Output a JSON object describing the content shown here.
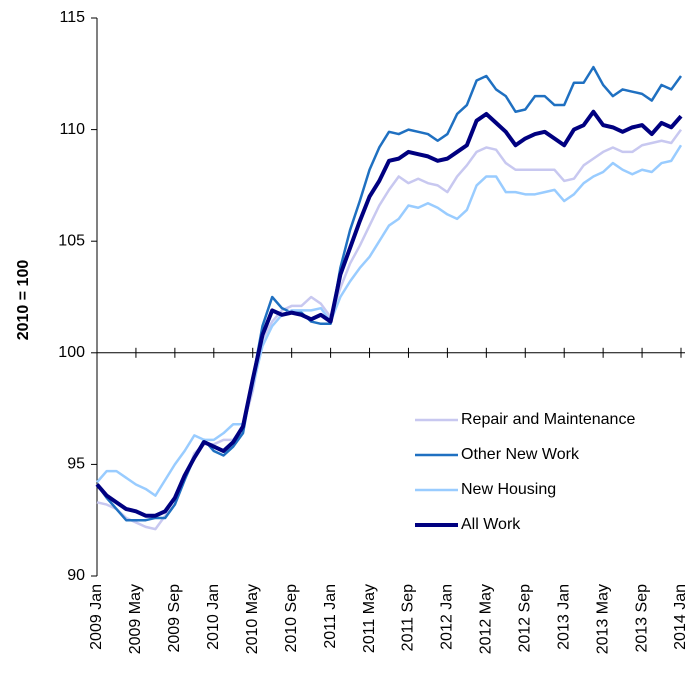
{
  "chart_data": {
    "type": "line",
    "y_label": "2010 = 100",
    "categories": [
      "2009 Jan",
      null,
      null,
      null,
      "2009 May",
      null,
      null,
      null,
      "2009 Sep",
      null,
      null,
      null,
      "2010 Jan",
      null,
      null,
      null,
      "2010 May",
      null,
      null,
      null,
      "2010 Sep",
      null,
      null,
      null,
      "2011 Jan",
      null,
      null,
      null,
      "2011 May",
      null,
      null,
      null,
      "2011 Sep",
      null,
      null,
      null,
      "2012 Jan",
      null,
      null,
      null,
      "2012 May",
      null,
      null,
      null,
      "2012 Sep",
      null,
      null,
      null,
      "2013 Jan",
      null,
      null,
      null,
      "2013 May",
      null,
      null,
      null,
      "2013 Sep",
      null,
      null,
      null,
      "2014 Jan"
    ],
    "series": [
      {
        "name": "Repair and Maintenance",
        "color": "#c8c8f0",
        "values": [
          93.3,
          93.2,
          93.0,
          92.6,
          92.4,
          92.2,
          92.1,
          92.7,
          93.2,
          94.3,
          95.5,
          95.9,
          95.9,
          96.1,
          96.1,
          96.7,
          98.3,
          100.6,
          101.4,
          101.9,
          102.1,
          102.1,
          102.5,
          102.2,
          101.6,
          102.9,
          104.0,
          104.8,
          105.7,
          106.6,
          107.3,
          107.9,
          107.6,
          107.8,
          107.6,
          107.5,
          107.2,
          107.9,
          108.4,
          109.0,
          109.2,
          109.1,
          108.5,
          108.2,
          108.2,
          108.2,
          108.2,
          108.2,
          107.7,
          107.8,
          108.4,
          108.7,
          109.0,
          109.2,
          109.0,
          109.0,
          109.3,
          109.4,
          109.5,
          109.4,
          110.0
        ]
      },
      {
        "name": "Other New Work",
        "color": "#1f70c1",
        "values": [
          94.1,
          93.5,
          93.0,
          92.5,
          92.5,
          92.5,
          92.6,
          92.6,
          93.2,
          94.3,
          95.3,
          96.1,
          95.6,
          95.4,
          95.8,
          96.4,
          98.8,
          101.2,
          102.5,
          102.0,
          101.8,
          101.8,
          101.4,
          101.3,
          101.3,
          103.8,
          105.5,
          106.8,
          108.2,
          109.2,
          109.9,
          109.8,
          110.0,
          109.9,
          109.8,
          109.5,
          109.8,
          110.7,
          111.1,
          112.2,
          112.4,
          111.8,
          111.5,
          110.8,
          110.9,
          111.5,
          111.5,
          111.1,
          111.1,
          112.1,
          112.1,
          112.8,
          112.0,
          111.5,
          111.8,
          111.7,
          111.6,
          111.3,
          112.0,
          111.8,
          112.4
        ]
      },
      {
        "name": "New Housing",
        "color": "#99ccff",
        "values": [
          94.2,
          94.7,
          94.7,
          94.4,
          94.1,
          93.9,
          93.6,
          94.3,
          95.0,
          95.6,
          96.3,
          96.1,
          96.1,
          96.4,
          96.8,
          96.8,
          98.5,
          100.3,
          101.2,
          101.7,
          101.9,
          101.9,
          101.9,
          102.0,
          101.4,
          102.5,
          103.2,
          103.8,
          104.3,
          105.0,
          105.7,
          106.0,
          106.6,
          106.5,
          106.7,
          106.5,
          106.2,
          106.0,
          106.4,
          107.5,
          107.9,
          107.9,
          107.2,
          107.2,
          107.1,
          107.1,
          107.2,
          107.3,
          106.8,
          107.1,
          107.6,
          107.9,
          108.1,
          108.5,
          108.2,
          108.0,
          108.2,
          108.1,
          108.5,
          108.6,
          109.3
        ]
      },
      {
        "name": "All Work",
        "color": "#000080",
        "values": [
          94.1,
          93.6,
          93.3,
          93.0,
          92.9,
          92.7,
          92.7,
          92.9,
          93.5,
          94.5,
          95.3,
          96.0,
          95.8,
          95.6,
          96.0,
          96.7,
          98.8,
          100.8,
          101.9,
          101.7,
          101.8,
          101.7,
          101.5,
          101.7,
          101.4,
          103.5,
          104.7,
          105.9,
          107.0,
          107.7,
          108.6,
          108.7,
          109.0,
          108.9,
          108.8,
          108.6,
          108.7,
          109.0,
          109.3,
          110.4,
          110.7,
          110.3,
          109.9,
          109.3,
          109.6,
          109.8,
          109.9,
          109.6,
          109.3,
          110.0,
          110.2,
          110.8,
          110.2,
          110.1,
          109.9,
          110.1,
          110.2,
          109.8,
          110.3,
          110.1,
          110.6
        ]
      }
    ],
    "ylim": [
      90,
      115
    ],
    "yticks": [
      90,
      95,
      100,
      105,
      110,
      115
    ],
    "x_axis_crosses_at": 100,
    "legend": "lower right",
    "grid": false
  }
}
